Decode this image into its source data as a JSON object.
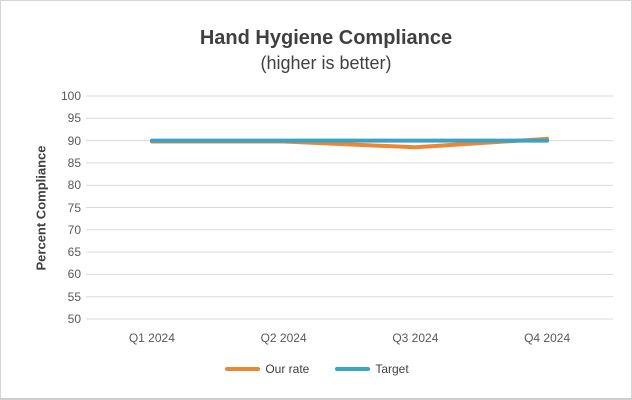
{
  "window": {
    "background": "#ffffff",
    "border_color": "#d4d4d4"
  },
  "chart_data": {
    "type": "line",
    "title": "Hand Hygiene Compliance",
    "subtitle": "(higher is better)",
    "xlabel": "",
    "ylabel": "Percent Compliance",
    "categories": [
      "Q1 2024",
      "Q2 2024",
      "Q3 2024",
      "Q4 2024"
    ],
    "series": [
      {
        "name": "Our rate",
        "color": "#ED8733",
        "values": [
          89.8,
          89.8,
          88.5,
          90.4
        ]
      },
      {
        "name": "Target",
        "color": "#3BA2C4",
        "values": [
          90,
          90,
          90,
          90
        ]
      }
    ],
    "ylim": [
      50,
      100
    ],
    "ytick_step": 5,
    "yticks": [
      100,
      95,
      90,
      85,
      80,
      75,
      70,
      65,
      60,
      55,
      50
    ],
    "grid": "horizontal",
    "gridline_color": "#D9D9D9",
    "title_color": "#404040",
    "tick_color": "#595959",
    "legend_position": "bottom",
    "line_width": 4
  }
}
